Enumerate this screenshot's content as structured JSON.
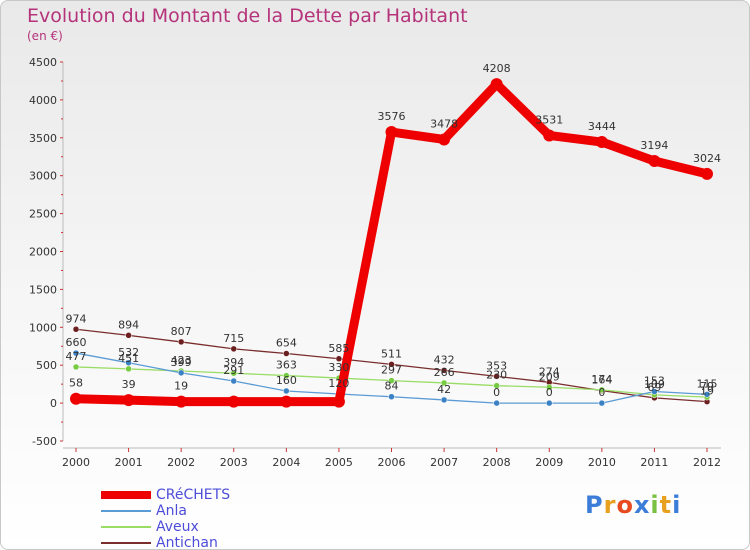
{
  "header": {
    "title": "Evolution du Montant de la Dette par Habitant",
    "subtitle": "(en €)"
  },
  "chart_data": {
    "type": "line",
    "title": "Evolution du Montant de la Dette par Habitant",
    "subtitle": "(en €)",
    "x": [
      "2000",
      "2001",
      "2002",
      "2003",
      "2004",
      "2005",
      "2006",
      "2007",
      "2008",
      "2009",
      "2010",
      "2011",
      "2012"
    ],
    "ylim": [
      -500,
      4500
    ],
    "yticks": [
      -500,
      0,
      500,
      1000,
      1500,
      2000,
      2500,
      3000,
      3500,
      4000,
      4500
    ],
    "grid": false,
    "legend_position": "bottom-left",
    "series": [
      {
        "name": "CRéCHETS",
        "color": "#ee0000",
        "point_color": "#ee0000",
        "values": [
          58,
          39,
          19,
          19,
          19,
          19,
          3576,
          3478,
          4208,
          3531,
          3444,
          3194,
          3024
        ],
        "labels": [
          "58",
          "39",
          "19",
          "",
          "",
          "",
          "3576",
          "3478",
          "4208",
          "3531",
          "3444",
          "3194",
          "3024"
        ]
      },
      {
        "name": "Anla",
        "color": "#5b9bd5",
        "point_color": "#3b82c4",
        "values": [
          660,
          532,
          399,
          291,
          160,
          120,
          84,
          42,
          0,
          0,
          0,
          153,
          115
        ],
        "labels": [
          "660",
          "532",
          "399",
          "291",
          "160",
          "120",
          "84",
          "42",
          "0",
          "0",
          "0",
          "153",
          "115"
        ]
      },
      {
        "name": "Aveux",
        "color": "#99dd66",
        "point_color": "#77cc44",
        "values": [
          477,
          451,
          423,
          394,
          363,
          330,
          297,
          266,
          230,
          209,
          174,
          109,
          79
        ],
        "labels": [
          "477",
          "451",
          "423",
          "394",
          "363",
          "330",
          "297",
          "266",
          "230",
          "209",
          "174",
          "109",
          "79"
        ]
      },
      {
        "name": "Antichan",
        "color": "#7a2d2d",
        "point_color": "#6b1f1f",
        "values": [
          974,
          894,
          807,
          715,
          654,
          585,
          511,
          432,
          353,
          274,
          164,
          69,
          19
        ],
        "labels": [
          "974",
          "894",
          "807",
          "715",
          "654",
          "585",
          "511",
          "432",
          "353",
          "274",
          "164",
          "69",
          "19"
        ]
      }
    ]
  },
  "legend": {
    "items": [
      {
        "label": "CRéCHETS",
        "color": "#ee0000"
      },
      {
        "label": "Anla",
        "color": "#5b9bd5"
      },
      {
        "label": "Aveux",
        "color": "#99dd66"
      },
      {
        "label": "Antichan",
        "color": "#7a2d2d"
      }
    ]
  },
  "logo": {
    "text": "Proxiti",
    "colors": [
      "#3b7dd8",
      "#e8a020",
      "#e84a20",
      "#3b7dd8",
      "#7ac143",
      "#e8a020",
      "#3b7dd8"
    ]
  }
}
